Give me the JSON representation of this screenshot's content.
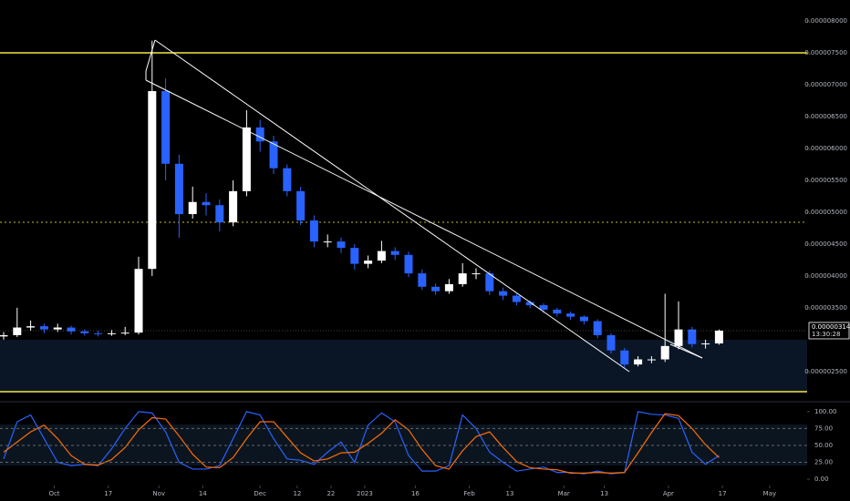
{
  "chart_data": [
    {
      "type": "candlestick",
      "price_label": "0.000003141",
      "countdown": "13:30:28",
      "up_color": "#ffffff",
      "down_color": "#2962ff",
      "open": [
        3.05e-06,
        3.07e-06,
        3.19e-06,
        3.21e-06,
        3.16e-06,
        3.19e-06,
        3.13e-06,
        3.1e-06,
        3.09e-06,
        3.1e-06,
        3.11e-06,
        4.11e-06,
        6.9e-06,
        5.76e-06,
        4.97e-06,
        5.16e-06,
        5.11e-06,
        4.84e-06,
        5.33e-06,
        6.33e-06,
        6.11e-06,
        5.69e-06,
        5.33e-06,
        4.87e-06,
        4.54e-06,
        4.54e-06,
        4.44e-06,
        4.19e-06,
        4.24e-06,
        4.39e-06,
        4.33e-06,
        4.04e-06,
        3.83e-06,
        3.76e-06,
        3.87e-06,
        4.04e-06,
        4.04e-06,
        3.76e-06,
        3.69e-06,
        3.59e-06,
        3.54e-06,
        3.47e-06,
        3.41e-06,
        3.36e-06,
        3.29e-06,
        3.07e-06,
        2.83e-06,
        2.61e-06,
        2.69e-06,
        2.69e-06,
        2.9e-06,
        3.16e-06,
        2.93e-06,
        2.94e-06
      ],
      "high": [
        3.12e-06,
        3.5e-06,
        3.3e-06,
        3.25e-06,
        3.25e-06,
        3.22e-06,
        3.16e-06,
        3.14e-06,
        3.15e-06,
        3.2e-06,
        4.3e-06,
        7.69e-06,
        7.1e-06,
        5.9e-06,
        5.4e-06,
        5.3e-06,
        5.2e-06,
        5.5e-06,
        6.6e-06,
        6.45e-06,
        6.2e-06,
        5.75e-06,
        5.4e-06,
        4.95e-06,
        4.65e-06,
        4.6e-06,
        4.5e-06,
        4.32e-06,
        4.55e-06,
        4.45e-06,
        4.38e-06,
        4.1e-06,
        3.88e-06,
        3.95e-06,
        4.2e-06,
        4.12e-06,
        4.08e-06,
        3.82e-06,
        3.72e-06,
        3.62e-06,
        3.57e-06,
        3.5e-06,
        3.44e-06,
        3.38e-06,
        3.32e-06,
        3.1e-06,
        2.87e-06,
        2.74e-06,
        2.74e-06,
        3.72e-06,
        3.6e-06,
        3.2e-06,
        3e-06,
        3.16e-06
      ],
      "low": [
        3e-06,
        3.04e-06,
        3.14e-06,
        3.1e-06,
        3.12e-06,
        3.08e-06,
        3.06e-06,
        3.05e-06,
        3.06e-06,
        3.07e-06,
        3.08e-06,
        4e-06,
        5.5e-06,
        4.6e-06,
        4.9e-06,
        4.95e-06,
        4.7e-06,
        4.78e-06,
        5.25e-06,
        5.95e-06,
        5.6e-06,
        5.25e-06,
        4.8e-06,
        4.45e-06,
        4.45e-06,
        4.36e-06,
        4.1e-06,
        4.12e-06,
        4.2e-06,
        4.25e-06,
        3.98e-06,
        3.78e-06,
        3.7e-06,
        3.72e-06,
        3.83e-06,
        3.95e-06,
        3.7e-06,
        3.62e-06,
        3.54e-06,
        3.49e-06,
        3.42e-06,
        3.36e-06,
        3.31e-06,
        3.24e-06,
        3.02e-06,
        2.78e-06,
        2.56e-06,
        2.58e-06,
        2.63e-06,
        2.65e-06,
        2.85e-06,
        2.88e-06,
        2.86e-06,
        2.92e-06
      ],
      "close": [
        3.07e-06,
        3.19e-06,
        3.21e-06,
        3.16e-06,
        3.19e-06,
        3.13e-06,
        3.1e-06,
        3.09e-06,
        3.1e-06,
        3.11e-06,
        4.11e-06,
        6.9e-06,
        5.76e-06,
        4.97e-06,
        5.16e-06,
        5.11e-06,
        4.84e-06,
        5.33e-06,
        6.33e-06,
        6.11e-06,
        5.69e-06,
        5.33e-06,
        4.87e-06,
        4.54e-06,
        4.54e-06,
        4.44e-06,
        4.19e-06,
        4.24e-06,
        4.39e-06,
        4.33e-06,
        4.04e-06,
        3.83e-06,
        3.76e-06,
        3.87e-06,
        4.04e-06,
        4.04e-06,
        3.76e-06,
        3.69e-06,
        3.59e-06,
        3.54e-06,
        3.47e-06,
        3.41e-06,
        3.36e-06,
        3.29e-06,
        3.07e-06,
        2.83e-06,
        2.61e-06,
        2.69e-06,
        2.69e-06,
        2.9e-06,
        3.16e-06,
        2.93e-06,
        2.94e-06,
        3.141e-06
      ],
      "ylim": [
        2.04e-06,
        8.33e-06
      ],
      "yticks": [
        {
          "value": 2.5e-06,
          "label": "0.000002500"
        },
        {
          "value": 3.5e-06,
          "label": "0.000003500"
        },
        {
          "value": 4e-06,
          "label": "0.000004000"
        },
        {
          "value": 4.5e-06,
          "label": "0.000004500"
        },
        {
          "value": 5e-06,
          "label": "0.000005000"
        },
        {
          "value": 5.5e-06,
          "label": "0.000005500"
        },
        {
          "value": 6e-06,
          "label": "0.000006000"
        },
        {
          "value": 6.5e-06,
          "label": "0.000006500"
        },
        {
          "value": 7e-06,
          "label": "0.000007000"
        },
        {
          "value": 7.5e-06,
          "label": "0.000007500"
        },
        {
          "value": 8e-06,
          "label": "0.000008000"
        }
      ],
      "xticks": [
        {
          "value": 3.75,
          "label": "Oct"
        },
        {
          "value": 7.75,
          "label": "17"
        },
        {
          "value": 11.5,
          "label": "Nov"
        },
        {
          "value": 14.75,
          "label": "14"
        },
        {
          "value": 19,
          "label": "Dec"
        },
        {
          "value": 21.75,
          "label": "12"
        },
        {
          "value": 24.25,
          "label": "22"
        },
        {
          "value": 26.75,
          "label": "2023"
        },
        {
          "value": 30.5,
          "label": "16"
        },
        {
          "value": 34.5,
          "label": "Feb"
        },
        {
          "value": 37.5,
          "label": "13"
        },
        {
          "value": 41.5,
          "label": "Mar"
        },
        {
          "value": 44.5,
          "label": "13"
        },
        {
          "value": 49.25,
          "label": "Apr"
        },
        {
          "value": 53.25,
          "label": "17"
        },
        {
          "value": 56.75,
          "label": "May"
        }
      ]
    },
    {
      "type": "line",
      "series": [
        {
          "color": "#2962ff",
          "values": [
            30,
            85,
            95,
            60,
            25,
            20,
            22,
            20,
            45,
            75,
            100,
            98,
            70,
            25,
            15,
            15,
            20,
            60,
            100,
            95,
            60,
            30,
            28,
            22,
            40,
            55,
            25,
            80,
            98,
            85,
            35,
            12,
            12,
            20,
            95,
            75,
            40,
            25,
            12,
            15,
            18,
            10,
            10,
            8,
            12,
            8,
            10,
            100,
            96,
            95,
            90,
            40,
            22,
            35
          ]
        },
        {
          "color": "#ff6d00",
          "values": [
            40,
            55,
            70,
            80,
            60,
            35,
            22,
            21,
            29,
            47,
            73,
            91,
            89,
            64,
            37,
            18,
            17,
            32,
            60,
            85,
            85,
            62,
            39,
            27,
            30,
            39,
            40,
            53,
            68,
            88,
            73,
            44,
            20,
            15,
            42,
            63,
            70,
            47,
            26,
            17,
            15,
            14,
            9,
            9,
            10,
            9,
            10,
            39,
            69,
            97,
            94,
            75,
            51,
            32
          ]
        }
      ],
      "ylim": [
        -8,
        116
      ],
      "yticks": [
        {
          "value": 0,
          "label": "0.00"
        },
        {
          "value": 25,
          "label": "25.00"
        },
        {
          "value": 50,
          "label": "50.00"
        },
        {
          "value": 75,
          "label": "75.00"
        },
        {
          "value": 100,
          "label": "100.00"
        }
      ]
    }
  ]
}
